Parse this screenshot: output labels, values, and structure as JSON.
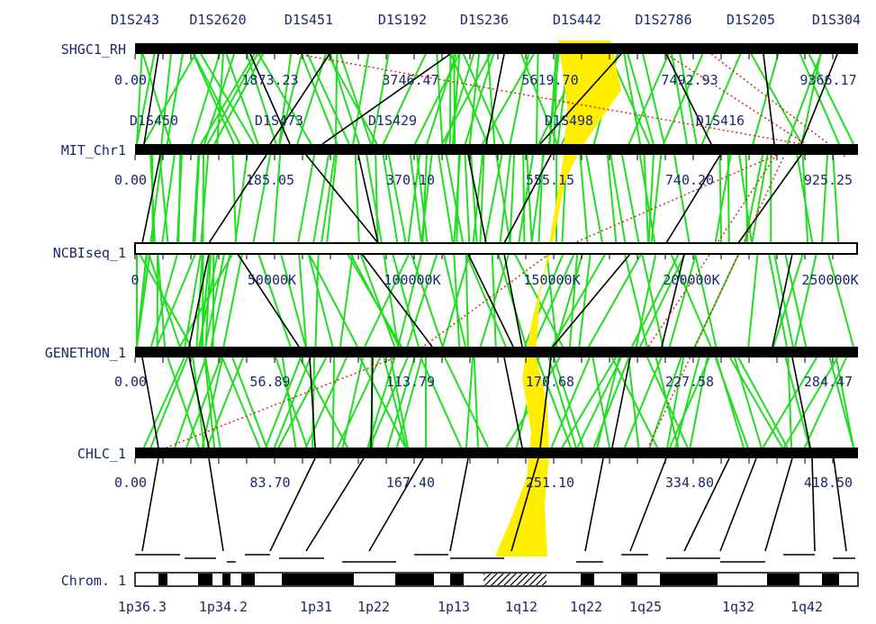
{
  "colors": {
    "text": "#1a2a6c",
    "bar": "#000000",
    "green_links": "#22dd22",
    "black_links": "#000000",
    "red_dotted": "#dd2222",
    "yellow_band": "#ffee00"
  },
  "maps": [
    {
      "name": "SHGC1_RH",
      "markers": [
        "D1S243",
        "D1S2620",
        "D1S451",
        "D1S192",
        "D1S236",
        "D1S442",
        "D1S2786",
        "D1S205",
        "D1S304"
      ],
      "scale": [
        "0.00",
        "1873.23",
        "3746.47",
        "5619.70",
        "7492.93",
        "9366.17"
      ]
    },
    {
      "name": "MIT_Chr1",
      "markers": [
        "D1S450",
        "D1S473",
        "D1S429",
        "D1S498",
        "D1S416"
      ],
      "scale": [
        "0.00",
        "185.05",
        "370.10",
        "555.15",
        "740.20",
        "925.25"
      ]
    },
    {
      "name": "NCBIseq_1",
      "markers": [],
      "scale": [
        "0",
        "50000K",
        "100000K",
        "150000K",
        "200000K",
        "250000K"
      ]
    },
    {
      "name": "GENETHON_1",
      "markers": [],
      "scale": [
        "0.00",
        "56.89",
        "113.79",
        "170.68",
        "227.58",
        "284.47"
      ]
    },
    {
      "name": "CHLC_1",
      "markers": [],
      "scale": [
        "0.00",
        "83.70",
        "167.40",
        "251.10",
        "334.80",
        "418.50"
      ]
    }
  ],
  "chromosome": {
    "label": "Chrom. 1",
    "bands": [
      "1p36.3",
      "1p34.2",
      "1p31",
      "1p22",
      "1p13",
      "1q12",
      "1q22",
      "1q25",
      "1q32",
      "1q42"
    ]
  }
}
